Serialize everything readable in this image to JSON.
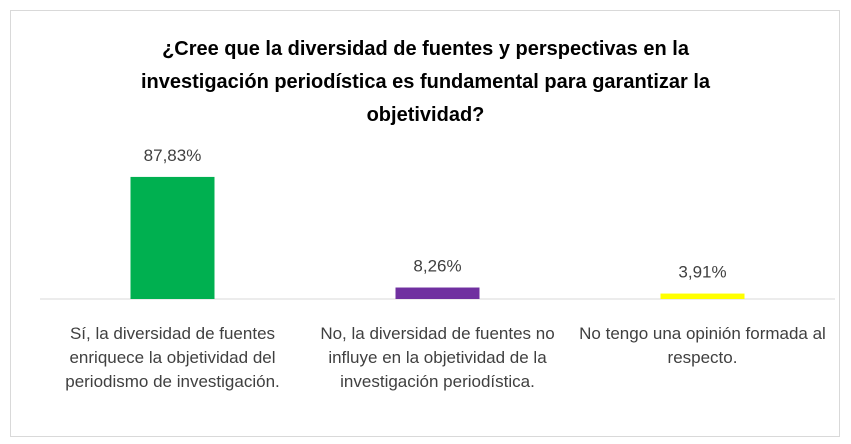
{
  "chart_data": {
    "type": "bar",
    "title": "¿Cree que la diversidad de fuentes y perspectivas en la investigación periodística es fundamental para garantizar la objetividad?",
    "categories": [
      "Sí, la diversidad de fuentes enriquece la objetividad del periodismo de investigación.",
      "No, la diversidad de fuentes no influye en la objetividad de la investigación periodística.",
      "No tengo una opinión formada al respecto."
    ],
    "values": [
      87.83,
      8.26,
      3.91
    ],
    "value_labels": [
      "87,83%",
      "8,26%",
      "3,91%"
    ],
    "colors": [
      "#00b050",
      "#7030a0",
      "#ffff00"
    ]
  }
}
